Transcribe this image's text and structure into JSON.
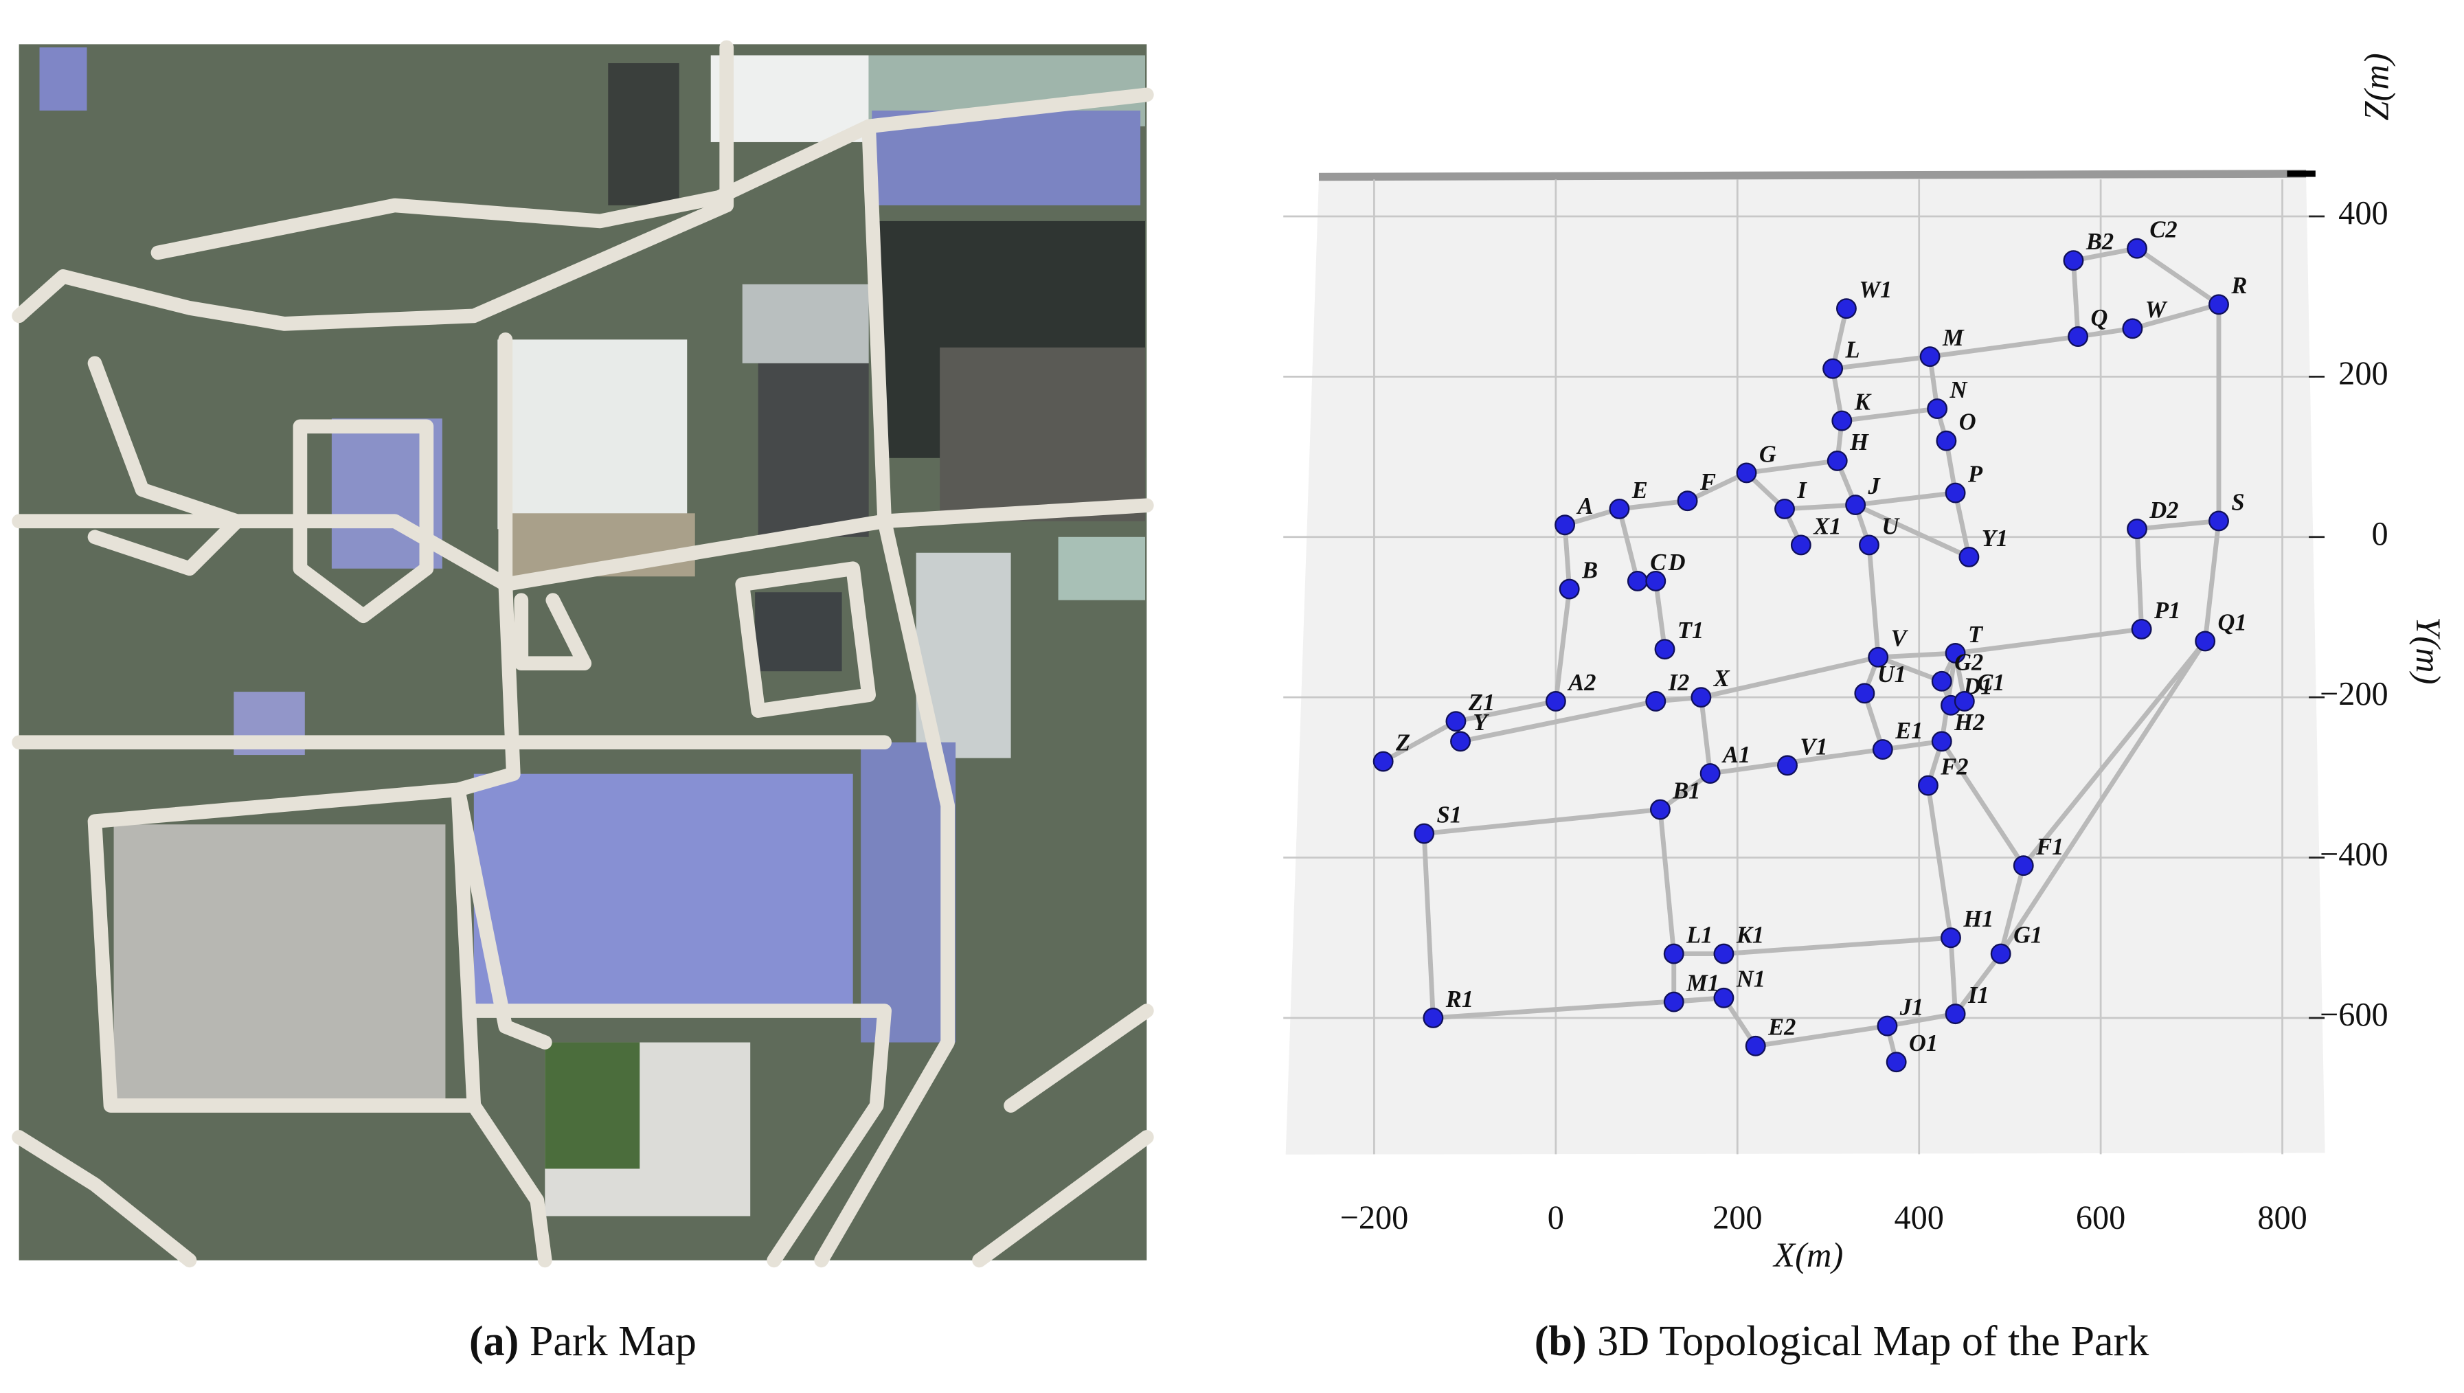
{
  "panels": [
    {
      "label": "(a)",
      "caption": "Park Map"
    },
    {
      "label": "(b)",
      "caption": "3D Topological Map of the Park"
    }
  ],
  "chart_data": {
    "type": "scatter",
    "xlabel": "X(m)",
    "ylabel": "Y(m)",
    "zlabel": "Z(m)",
    "xlim": [
      -300,
      850
    ],
    "ylim": [
      -770,
      450
    ],
    "xticks": [
      {
        "value": -200,
        "label": "−200"
      },
      0,
      200,
      400,
      600,
      800
    ],
    "yticks": [
      {
        "value": -600,
        "label": "−600"
      },
      {
        "value": -400,
        "label": "−400"
      },
      {
        "value": -200,
        "label": "−200"
      },
      0,
      200,
      400
    ],
    "grid": true,
    "color": "#2424e0",
    "edge_color": "#b9b9b9",
    "nodes": [
      {
        "name": "B2",
        "x": 570,
        "y": 345
      },
      {
        "name": "C2",
        "x": 640,
        "y": 360
      },
      {
        "name": "R",
        "x": 730,
        "y": 290
      },
      {
        "name": "W",
        "x": 635,
        "y": 260
      },
      {
        "name": "Q",
        "x": 575,
        "y": 250
      },
      {
        "name": "W1",
        "x": 320,
        "y": 285
      },
      {
        "name": "M",
        "x": 412,
        "y": 225
      },
      {
        "name": "L",
        "x": 305,
        "y": 210
      },
      {
        "name": "N",
        "x": 420,
        "y": 160
      },
      {
        "name": "K",
        "x": 315,
        "y": 145
      },
      {
        "name": "O",
        "x": 430,
        "y": 120
      },
      {
        "name": "H",
        "x": 310,
        "y": 95
      },
      {
        "name": "G",
        "x": 210,
        "y": 80
      },
      {
        "name": "P",
        "x": 440,
        "y": 55
      },
      {
        "name": "F",
        "x": 145,
        "y": 45
      },
      {
        "name": "I",
        "x": 252,
        "y": 35
      },
      {
        "name": "J",
        "x": 330,
        "y": 40
      },
      {
        "name": "E",
        "x": 70,
        "y": 35
      },
      {
        "name": "A",
        "x": 10,
        "y": 15
      },
      {
        "name": "D2",
        "x": 640,
        "y": 10
      },
      {
        "name": "S",
        "x": 730,
        "y": 20
      },
      {
        "name": "X1",
        "x": 270,
        "y": -10
      },
      {
        "name": "U",
        "x": 345,
        "y": -10
      },
      {
        "name": "Y1",
        "x": 455,
        "y": -25
      },
      {
        "name": "C",
        "x": 90,
        "y": -55
      },
      {
        "name": "D",
        "x": 110,
        "y": -55
      },
      {
        "name": "B",
        "x": 15,
        "y": -65
      },
      {
        "name": "P1",
        "x": 645,
        "y": -115
      },
      {
        "name": "Q1",
        "x": 715,
        "y": -130
      },
      {
        "name": "T1",
        "x": 120,
        "y": -140
      },
      {
        "name": "V",
        "x": 355,
        "y": -150
      },
      {
        "name": "T",
        "x": 440,
        "y": -145
      },
      {
        "name": "G2",
        "x": 425,
        "y": -180
      },
      {
        "name": "U1",
        "x": 340,
        "y": -195
      },
      {
        "name": "D1",
        "x": 435,
        "y": -210
      },
      {
        "name": "C1",
        "x": 450,
        "y": -205
      },
      {
        "name": "A2",
        "x": 0,
        "y": -205
      },
      {
        "name": "I2",
        "x": 110,
        "y": -205
      },
      {
        "name": "X",
        "x": 160,
        "y": -200
      },
      {
        "name": "Z1",
        "x": -110,
        "y": -230
      },
      {
        "name": "Y",
        "x": -105,
        "y": -255
      },
      {
        "name": "H2",
        "x": 425,
        "y": -255
      },
      {
        "name": "E1",
        "x": 360,
        "y": -265
      },
      {
        "name": "Z",
        "x": -190,
        "y": -280
      },
      {
        "name": "V1",
        "x": 255,
        "y": -285
      },
      {
        "name": "A1",
        "x": 170,
        "y": -295
      },
      {
        "name": "F2",
        "x": 410,
        "y": -310
      },
      {
        "name": "B1",
        "x": 115,
        "y": -340
      },
      {
        "name": "S1",
        "x": -145,
        "y": -370
      },
      {
        "name": "F1",
        "x": 515,
        "y": -410
      },
      {
        "name": "H1",
        "x": 435,
        "y": -500
      },
      {
        "name": "L1",
        "x": 130,
        "y": -520
      },
      {
        "name": "K1",
        "x": 185,
        "y": -520
      },
      {
        "name": "G1",
        "x": 490,
        "y": -520
      },
      {
        "name": "M1",
        "x": 130,
        "y": -580
      },
      {
        "name": "N1",
        "x": 185,
        "y": -575
      },
      {
        "name": "I1",
        "x": 440,
        "y": -595
      },
      {
        "name": "R1",
        "x": -135,
        "y": -600
      },
      {
        "name": "J1",
        "x": 365,
        "y": -610
      },
      {
        "name": "E2",
        "x": 220,
        "y": -635
      },
      {
        "name": "O1",
        "x": 375,
        "y": -655
      }
    ],
    "edges": [
      [
        "B2",
        "C2"
      ],
      [
        "C2",
        "R"
      ],
      [
        "R",
        "W"
      ],
      [
        "W",
        "Q"
      ],
      [
        "Q",
        "B2"
      ],
      [
        "Q",
        "M"
      ],
      [
        "R",
        "S"
      ],
      [
        "S",
        "D2"
      ],
      [
        "D2",
        "P1"
      ],
      [
        "S",
        "Q1"
      ],
      [
        "Q1",
        "F1"
      ],
      [
        "Q1",
        "G1"
      ],
      [
        "P1",
        "T"
      ],
      [
        "W1",
        "L"
      ],
      [
        "L",
        "M"
      ],
      [
        "L",
        "K"
      ],
      [
        "K",
        "N"
      ],
      [
        "N",
        "M"
      ],
      [
        "N",
        "O"
      ],
      [
        "O",
        "P"
      ],
      [
        "K",
        "H"
      ],
      [
        "H",
        "G"
      ],
      [
        "G",
        "F"
      ],
      [
        "F",
        "E"
      ],
      [
        "E",
        "A"
      ],
      [
        "A",
        "B"
      ],
      [
        "G",
        "I"
      ],
      [
        "I",
        "J"
      ],
      [
        "H",
        "J"
      ],
      [
        "J",
        "P"
      ],
      [
        "J",
        "U"
      ],
      [
        "J",
        "Y1"
      ],
      [
        "P",
        "Y1"
      ],
      [
        "I",
        "X1"
      ],
      [
        "E",
        "C"
      ],
      [
        "C",
        "D"
      ],
      [
        "D",
        "T1"
      ],
      [
        "B",
        "A2"
      ],
      [
        "A2",
        "Z1"
      ],
      [
        "Z1",
        "Z"
      ],
      [
        "Y",
        "I2"
      ],
      [
        "I2",
        "X"
      ],
      [
        "X",
        "V"
      ],
      [
        "X",
        "A1"
      ],
      [
        "A1",
        "E1"
      ],
      [
        "A1",
        "B1"
      ],
      [
        "B1",
        "S1"
      ],
      [
        "S1",
        "R1"
      ],
      [
        "R1",
        "N1"
      ],
      [
        "N1",
        "M1"
      ],
      [
        "M1",
        "L1"
      ],
      [
        "L1",
        "K1"
      ],
      [
        "K1",
        "H1"
      ],
      [
        "H1",
        "I1"
      ],
      [
        "H1",
        "F2"
      ],
      [
        "F2",
        "H2"
      ],
      [
        "H2",
        "T"
      ],
      [
        "H2",
        "F1"
      ],
      [
        "F1",
        "G1"
      ],
      [
        "G1",
        "I1"
      ],
      [
        "I1",
        "J1"
      ],
      [
        "J1",
        "O1"
      ],
      [
        "E2",
        "N1"
      ],
      [
        "E2",
        "J1"
      ],
      [
        "B1",
        "L1"
      ],
      [
        "U",
        "V"
      ],
      [
        "V",
        "T"
      ],
      [
        "T",
        "G2"
      ],
      [
        "G2",
        "D1"
      ],
      [
        "D1",
        "C1"
      ],
      [
        "U1",
        "V"
      ],
      [
        "U1",
        "E1"
      ],
      [
        "E1",
        "H2"
      ],
      [
        "V",
        "G2"
      ],
      [
        "T",
        "C1"
      ]
    ]
  }
}
